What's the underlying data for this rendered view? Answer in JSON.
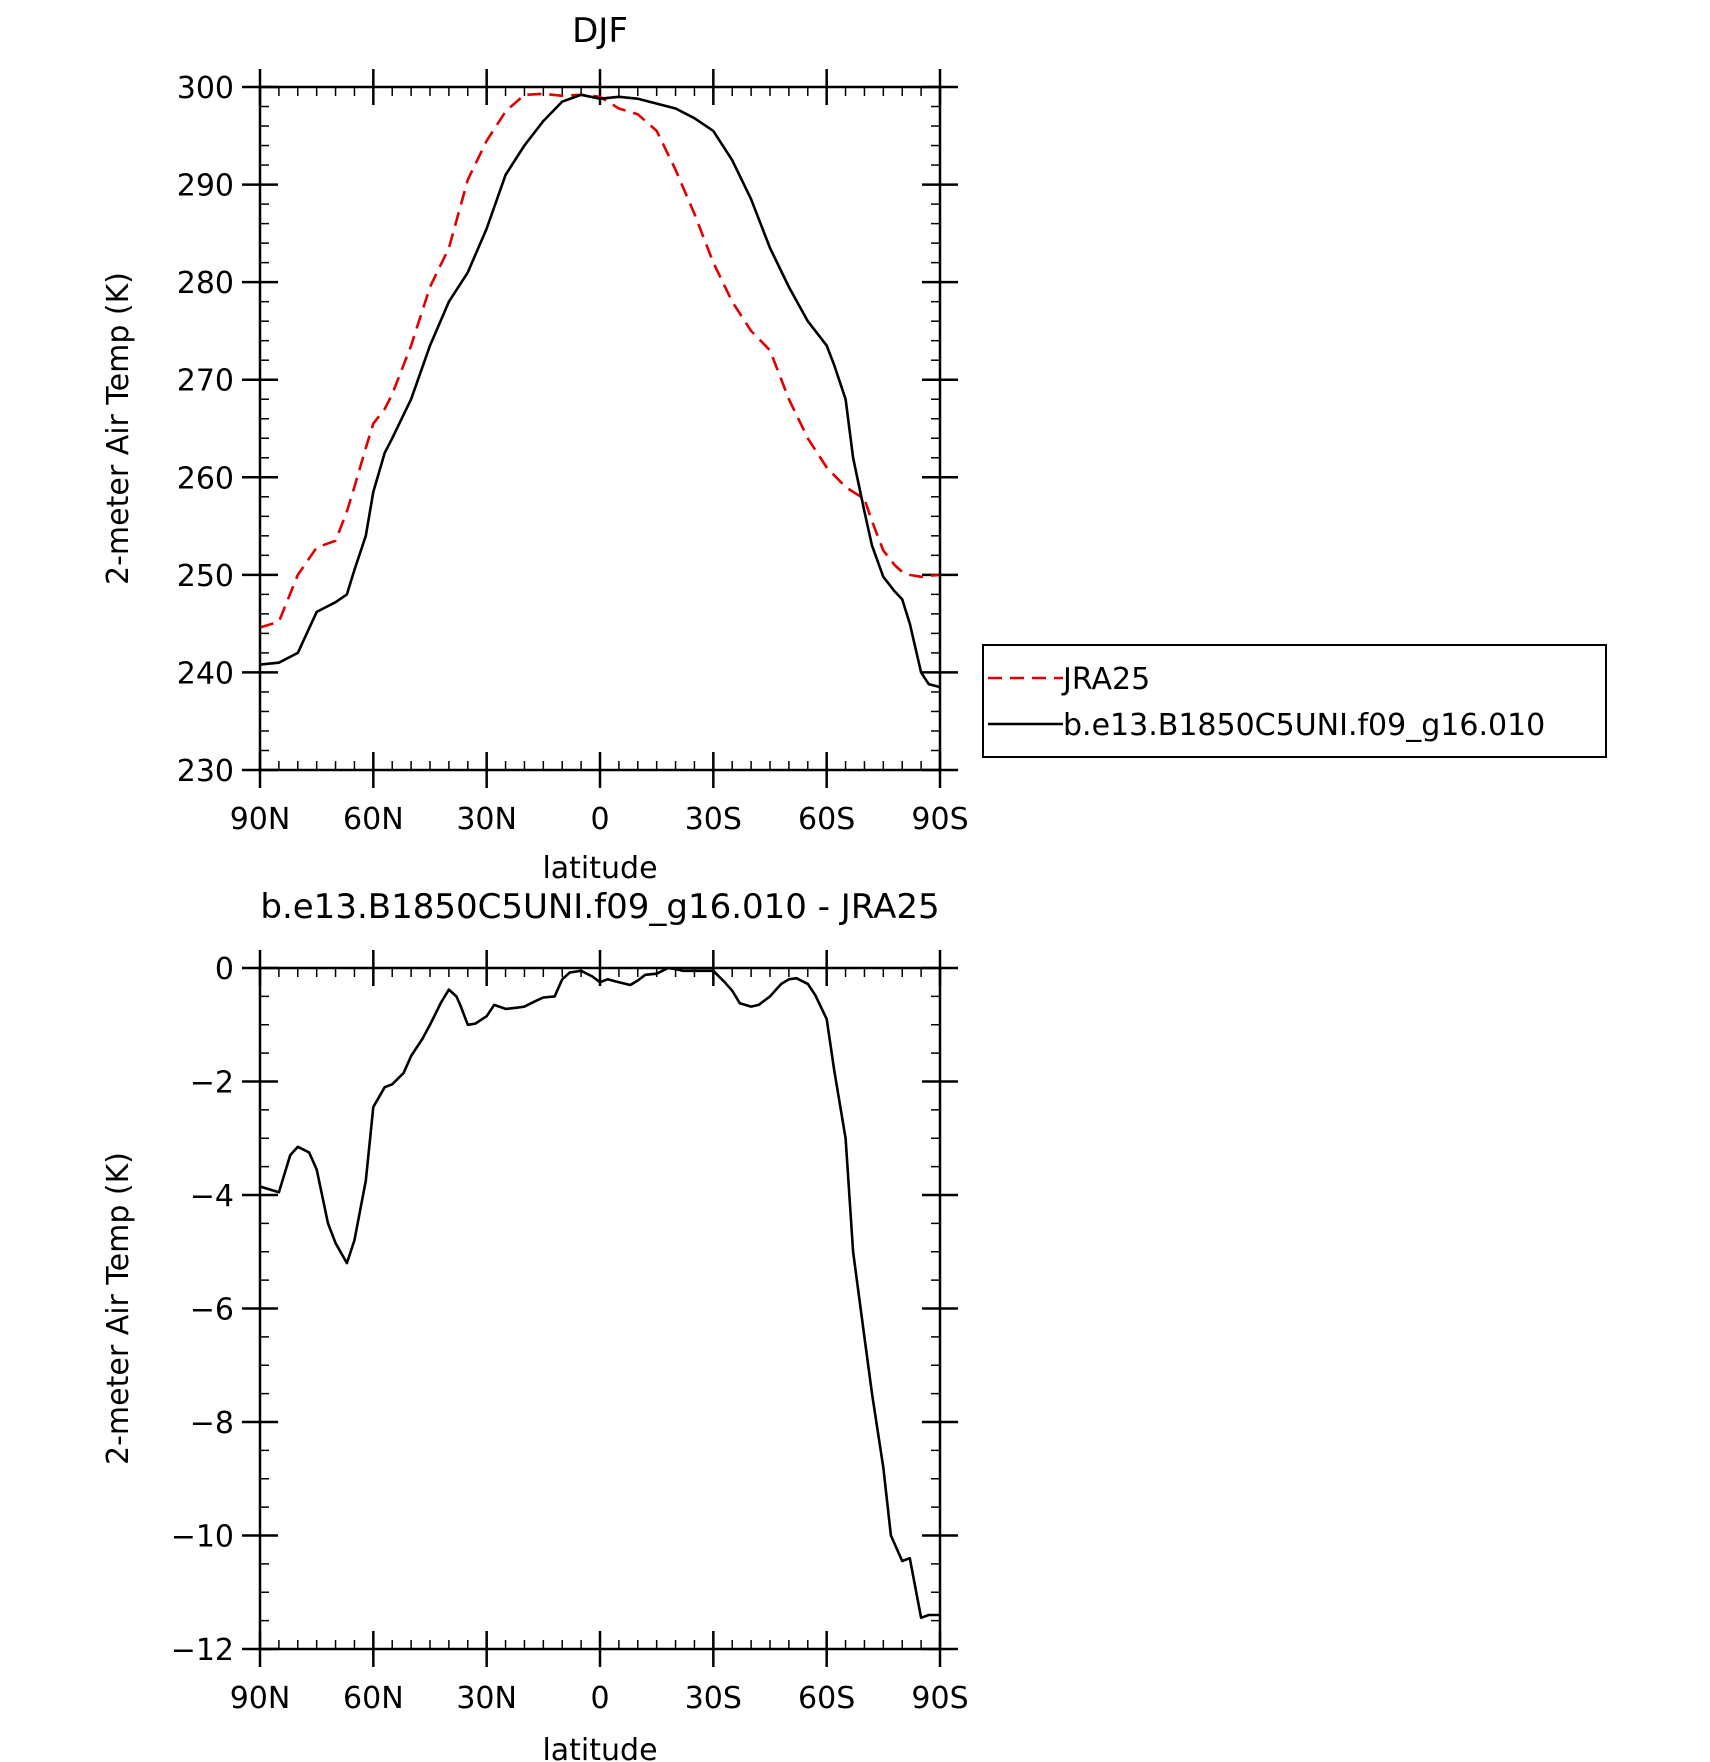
{
  "chart_data": [
    {
      "type": "line",
      "title": "DJF",
      "xlabel": "latitude",
      "ylabel": "2-meter Air Temp (K)",
      "xlim": [
        90,
        -90
      ],
      "ylim": [
        230,
        300
      ],
      "xticks": [
        {
          "value": 90,
          "label": "90N"
        },
        {
          "value": 60,
          "label": "60N"
        },
        {
          "value": 30,
          "label": "30N"
        },
        {
          "value": 0,
          "label": "0"
        },
        {
          "value": -30,
          "label": "30S"
        },
        {
          "value": -60,
          "label": "60S"
        },
        {
          "value": -90,
          "label": "90S"
        }
      ],
      "yticks": [
        {
          "value": 300,
          "label": "300"
        },
        {
          "value": 290,
          "label": "290"
        },
        {
          "value": 280,
          "label": "280"
        },
        {
          "value": 270,
          "label": "270"
        },
        {
          "value": 260,
          "label": "260"
        },
        {
          "value": 250,
          "label": "250"
        },
        {
          "value": 240,
          "label": "240"
        },
        {
          "value": 230,
          "label": "230"
        }
      ],
      "legend": "right",
      "series": [
        {
          "name": "JRA25",
          "color": "#e00000",
          "dash": true,
          "x": [
            90,
            85,
            80,
            75,
            70,
            67,
            65,
            62,
            60,
            57,
            55,
            50,
            45,
            40,
            35,
            30,
            25,
            20,
            15,
            10,
            5,
            0,
            -5,
            -10,
            -15,
            -20,
            -25,
            -30,
            -35,
            -40,
            -45,
            -50,
            -55,
            -60,
            -65,
            -67,
            -70,
            -72,
            -75,
            -78,
            -80,
            -82,
            -85,
            -87,
            -90
          ],
          "y": [
            244.6,
            245.2,
            250.0,
            252.8,
            253.5,
            256.5,
            259.0,
            263.0,
            265.5,
            267.0,
            268.5,
            273.5,
            279.5,
            283.5,
            290.5,
            294.5,
            297.5,
            299.2,
            299.3,
            299.1,
            299.2,
            299.0,
            297.8,
            297.2,
            295.5,
            291.5,
            287.0,
            282.0,
            278.0,
            275.0,
            273.0,
            268.0,
            264.0,
            261.0,
            259.0,
            258.5,
            257.8,
            255.5,
            252.5,
            251.0,
            250.3,
            250.0,
            249.8,
            249.9,
            250.0
          ]
        },
        {
          "name": "b.e13.B1850C5UNI.f09_g16.010",
          "color": "#000000",
          "dash": false,
          "x": [
            90,
            85,
            80,
            75,
            70,
            67,
            65,
            62,
            60,
            57,
            55,
            50,
            45,
            40,
            35,
            30,
            25,
            20,
            15,
            10,
            5,
            0,
            -5,
            -10,
            -15,
            -20,
            -25,
            -30,
            -35,
            -40,
            -45,
            -50,
            -55,
            -60,
            -62,
            -65,
            -67,
            -70,
            -72,
            -75,
            -78,
            -80,
            -82,
            -85,
            -87,
            -90
          ],
          "y": [
            240.8,
            241.0,
            242.0,
            246.2,
            247.2,
            248.0,
            250.5,
            254.0,
            258.5,
            262.5,
            264.0,
            268.0,
            273.5,
            278.0,
            281.0,
            285.5,
            291.0,
            294.0,
            296.5,
            298.5,
            299.2,
            298.8,
            299.0,
            298.8,
            298.3,
            297.8,
            296.8,
            295.5,
            292.5,
            288.5,
            283.5,
            279.5,
            276.0,
            273.5,
            271.5,
            268.0,
            262.0,
            256.5,
            253.0,
            249.8,
            248.3,
            247.5,
            245.0,
            240.0,
            238.8,
            238.5
          ]
        }
      ]
    },
    {
      "type": "line",
      "title": "b.e13.B1850C5UNI.f09_g16.010 - JRA25",
      "xlabel": "latitude",
      "ylabel": "2-meter Air Temp (K)",
      "xlim": [
        90,
        -90
      ],
      "ylim": [
        -12,
        0
      ],
      "xticks": [
        {
          "value": 90,
          "label": "90N"
        },
        {
          "value": 60,
          "label": "60N"
        },
        {
          "value": 30,
          "label": "30N"
        },
        {
          "value": 0,
          "label": "0"
        },
        {
          "value": -30,
          "label": "30S"
        },
        {
          "value": -60,
          "label": "60S"
        },
        {
          "value": -90,
          "label": "90S"
        }
      ],
      "yticks": [
        {
          "value": 0,
          "label": "0"
        },
        {
          "value": -2,
          "label": "−2"
        },
        {
          "value": -4,
          "label": "−4"
        },
        {
          "value": -6,
          "label": "−6"
        },
        {
          "value": -8,
          "label": "−8"
        },
        {
          "value": -10,
          "label": "−10"
        },
        {
          "value": -12,
          "label": "−12"
        }
      ],
      "series": [
        {
          "name": "",
          "color": "#000000",
          "dash": false,
          "x": [
            90,
            85,
            82,
            80,
            77,
            75,
            72,
            70,
            67,
            65,
            62,
            60,
            57,
            55,
            52,
            50,
            47,
            45,
            42,
            40,
            38,
            37,
            35,
            33,
            30,
            28,
            25,
            22,
            20,
            17,
            15,
            12,
            10,
            8,
            5,
            2,
            0,
            -2,
            -5,
            -8,
            -10,
            -12,
            -15,
            -18,
            -20,
            -22,
            -25,
            -27,
            -30,
            -33,
            -35,
            -37,
            -40,
            -42,
            -45,
            -48,
            -50,
            -52,
            -55,
            -57,
            -60,
            -62,
            -65,
            -67,
            -70,
            -72,
            -75,
            -77,
            -80,
            -82,
            -85,
            -87,
            -88,
            -90
          ],
          "y": [
            -3.85,
            -3.95,
            -3.3,
            -3.15,
            -3.25,
            -3.55,
            -4.5,
            -4.85,
            -5.2,
            -4.8,
            -3.75,
            -2.45,
            -2.1,
            -2.05,
            -1.85,
            -1.55,
            -1.25,
            -1.0,
            -0.6,
            -0.38,
            -0.5,
            -0.65,
            -1.0,
            -0.98,
            -0.85,
            -0.65,
            -0.72,
            -0.7,
            -0.68,
            -0.58,
            -0.52,
            -0.5,
            -0.2,
            -0.08,
            -0.05,
            -0.15,
            -0.25,
            -0.2,
            -0.25,
            -0.3,
            -0.22,
            -0.12,
            -0.1,
            0.0,
            -0.02,
            -0.05,
            -0.05,
            -0.05,
            -0.05,
            -0.25,
            -0.4,
            -0.62,
            -0.68,
            -0.65,
            -0.5,
            -0.28,
            -0.2,
            -0.18,
            -0.28,
            -0.48,
            -0.9,
            -1.8,
            -3.0,
            -5.0,
            -6.5,
            -7.5,
            -8.8,
            -10.0,
            -10.45,
            -10.4,
            -11.45,
            -11.4,
            -11.4,
            -11.4
          ]
        }
      ]
    }
  ]
}
